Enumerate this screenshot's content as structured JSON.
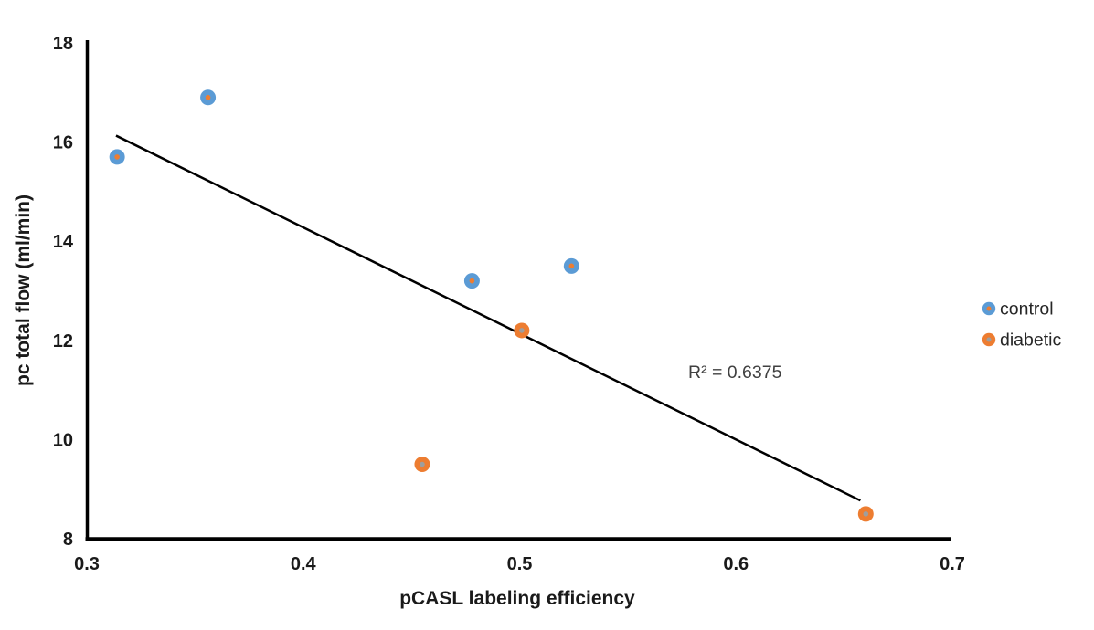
{
  "chart_data": {
    "type": "scatter",
    "title": "",
    "xlabel": "pCASL labeling efficiency",
    "ylabel": "pc total flow (ml/min)",
    "xlim": [
      0.3,
      0.7
    ],
    "ylim": [
      8,
      18
    ],
    "x_ticks": [
      0.3,
      0.4,
      0.5,
      0.6,
      0.7
    ],
    "y_ticks": [
      8,
      10,
      12,
      14,
      16,
      18
    ],
    "grid": false,
    "legend_position": "right-middle",
    "series": [
      {
        "name": "control",
        "color": "#5b9bd5",
        "marker_center_color": "#ed7d31",
        "points": [
          {
            "x": 0.314,
            "y": 15.7
          },
          {
            "x": 0.356,
            "y": 16.9
          },
          {
            "x": 0.478,
            "y": 13.2
          },
          {
            "x": 0.524,
            "y": 13.5
          }
        ]
      },
      {
        "name": "diabetic",
        "color": "#ed7d31",
        "marker_center_color": "#9e9e9e",
        "points": [
          {
            "x": 0.455,
            "y": 9.5
          },
          {
            "x": 0.501,
            "y": 12.2
          },
          {
            "x": 0.66,
            "y": 8.5
          }
        ]
      }
    ],
    "trendline": {
      "x1": 0.3135,
      "y1": 16.13,
      "x2": 0.6575,
      "y2": 8.77,
      "color": "#000000"
    },
    "annotation": {
      "text": "R² = 0.6375"
    }
  },
  "colors": {
    "axis_line": "#000000",
    "tick_label": "#1a1a1a",
    "axis_title": "#1a1a1a",
    "annotation_text": "#404040",
    "legend_text": "#262626"
  }
}
